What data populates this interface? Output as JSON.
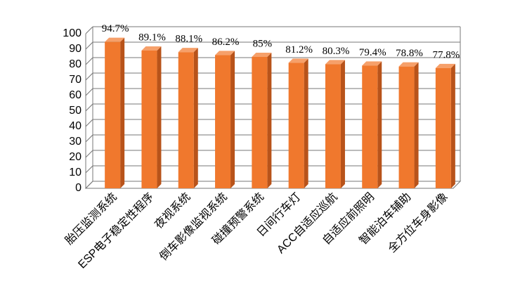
{
  "chart_data": {
    "type": "bar3d",
    "categories": [
      "胎压监测系统",
      "ESP电子稳定性程序",
      "夜视系统",
      "倒车影像监视系统",
      "碰撞预警系统",
      "日间行车灯",
      "ACC自适应巡航",
      "自适应前照明",
      "智能泊车辅助",
      "全方位车身影像"
    ],
    "values": [
      94.7,
      89.1,
      88.1,
      86.2,
      85,
      81.2,
      80.3,
      79.4,
      78.8,
      77.8
    ],
    "value_labels": [
      "94.7%",
      "89.1%",
      "88.1%",
      "86.2%",
      "85%",
      "81.2%",
      "80.3%",
      "79.4%",
      "78.8%",
      "77.8%"
    ],
    "color": "#f0782d",
    "ylim": [
      0,
      100
    ],
    "yticks": [
      0,
      10,
      20,
      30,
      40,
      50,
      60,
      70,
      80,
      90,
      100
    ],
    "grid": true
  }
}
